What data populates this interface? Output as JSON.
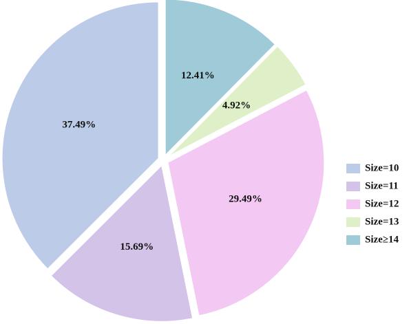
{
  "chart_data": {
    "type": "pie",
    "categories": [
      "Size=10",
      "Size=11",
      "Size=12",
      "Size=13",
      "Size≥14"
    ],
    "values": [
      37.49,
      15.69,
      29.49,
      4.92,
      12.41
    ],
    "value_labels": [
      "37.49%",
      "15.69%",
      "29.49%",
      "4.92%",
      "12.41%"
    ],
    "colors": [
      "#bccbe8",
      "#d3c3e8",
      "#f3c9f3",
      "#dff0c9",
      "#9fcbd9"
    ],
    "legend": "right"
  }
}
